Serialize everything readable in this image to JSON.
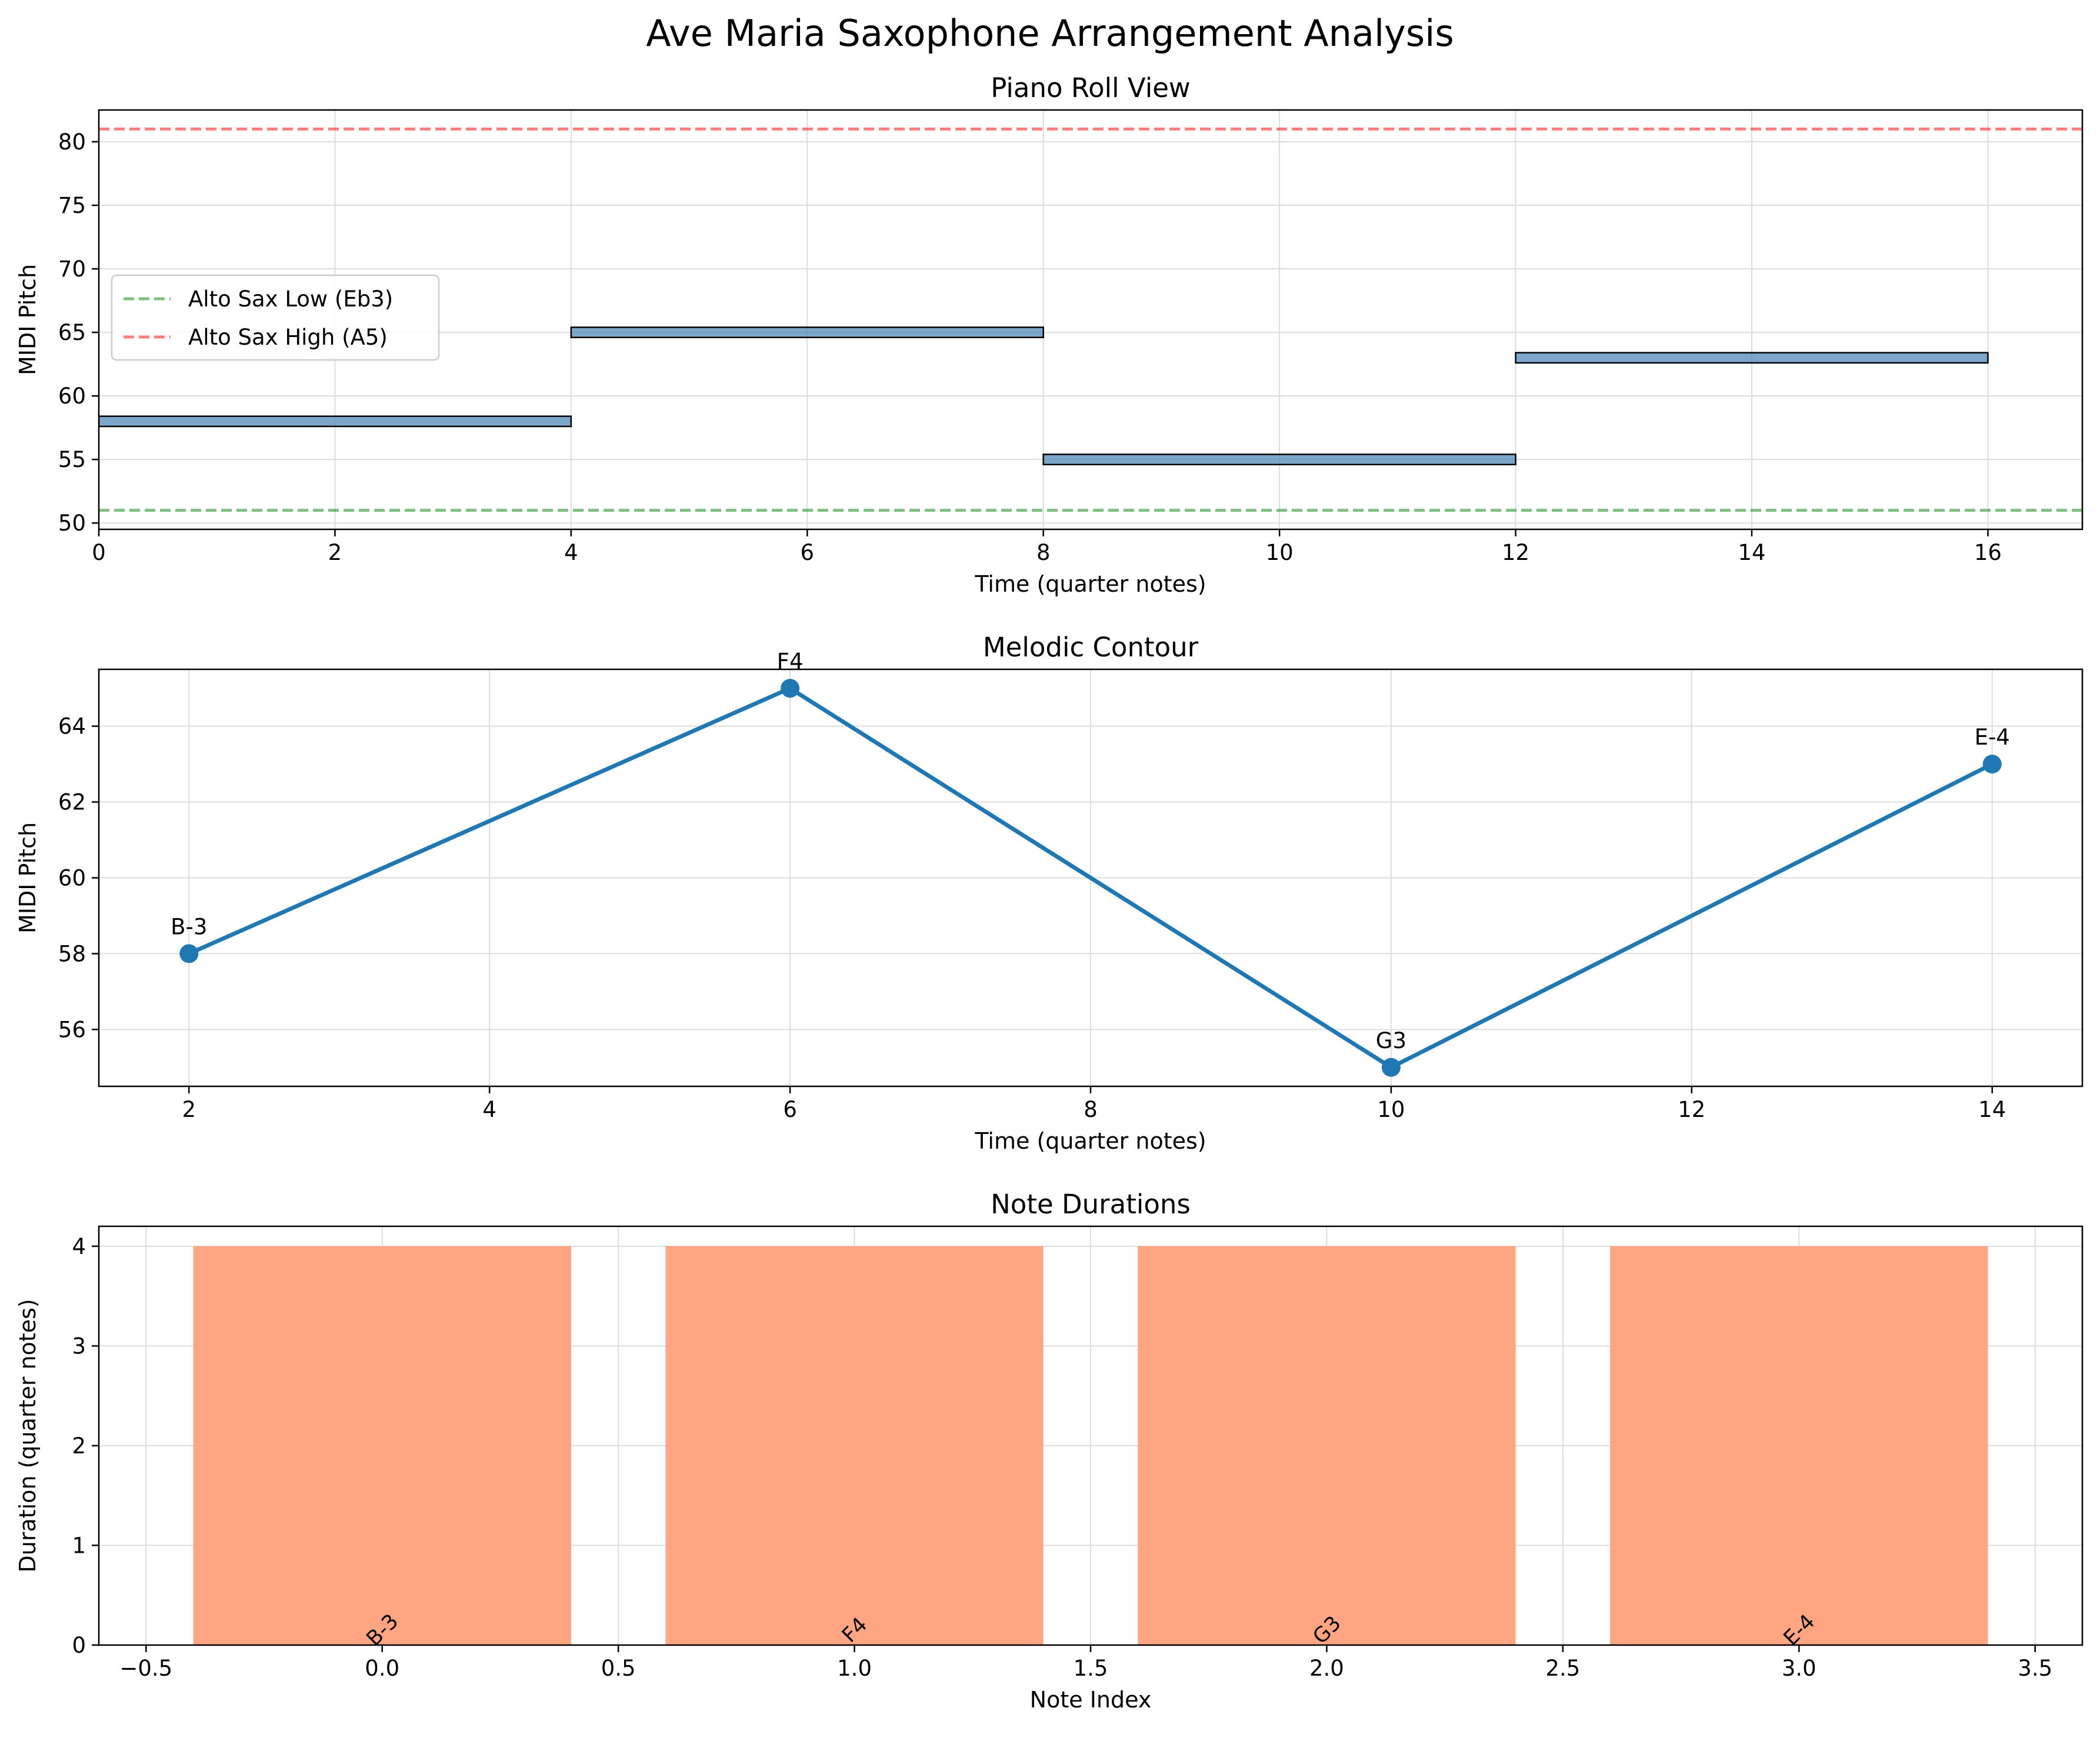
{
  "figure": {
    "title": "Ave Maria Saxophone Arrangement Analysis"
  },
  "colors": {
    "note_fill": "#4682b4",
    "note_edge": "#000000",
    "low_line": "#008000",
    "high_line": "#ff0000",
    "contour_line": "#1f77b4",
    "duration_bar": "#ffa07a",
    "grid": "#dddddd"
  },
  "chart_data": [
    {
      "id": "piano-roll",
      "type": "bar",
      "title": "Piano Roll View",
      "xlabel": "Time (quarter notes)",
      "ylabel": "MIDI Pitch",
      "xlim": [
        0,
        16.8
      ],
      "ylim": [
        49.5,
        82.5
      ],
      "xticks": [
        0,
        2,
        4,
        6,
        8,
        10,
        12,
        14,
        16
      ],
      "yticks": [
        50,
        55,
        60,
        65,
        70,
        75,
        80
      ],
      "grid": true,
      "notes": [
        {
          "start": 0,
          "duration": 4,
          "pitch": 58
        },
        {
          "start": 4,
          "duration": 4,
          "pitch": 65
        },
        {
          "start": 8,
          "duration": 4,
          "pitch": 55
        },
        {
          "start": 12,
          "duration": 4,
          "pitch": 63
        }
      ],
      "reference_lines": [
        {
          "name": "Alto Sax Low (Eb3)",
          "value": 51,
          "style": "dashed"
        },
        {
          "name": "Alto Sax High (A5)",
          "value": 81,
          "style": "dashed"
        }
      ],
      "legend": {
        "placement": "center-left",
        "entries": [
          "Alto Sax Low (Eb3)",
          "Alto Sax High (A5)"
        ]
      }
    },
    {
      "id": "melodic-contour",
      "type": "line",
      "title": "Melodic Contour",
      "xlabel": "Time (quarter notes)",
      "ylabel": "MIDI Pitch",
      "xlim": [
        1.4,
        14.6
      ],
      "ylim": [
        54.5,
        65.5
      ],
      "xticks": [
        2,
        4,
        6,
        8,
        10,
        12,
        14
      ],
      "yticks": [
        56,
        58,
        60,
        62,
        64
      ],
      "grid": true,
      "x": [
        2,
        6,
        10,
        14
      ],
      "y": [
        58,
        65,
        55,
        63
      ],
      "labels": [
        "B-3",
        "F4",
        "G3",
        "E-4"
      ]
    },
    {
      "id": "note-durations",
      "type": "bar",
      "title": "Note Durations",
      "xlabel": "Note Index",
      "ylabel": "Duration (quarter notes)",
      "xlim": [
        -0.6,
        3.6
      ],
      "ylim": [
        0,
        4.2
      ],
      "xticks": [
        -0.5,
        0.0,
        0.5,
        1.0,
        1.5,
        2.0,
        2.5,
        3.0,
        3.5
      ],
      "xtick_labels": [
        "−0.5",
        "0.0",
        "0.5",
        "1.0",
        "1.5",
        "2.0",
        "2.5",
        "3.0",
        "3.5"
      ],
      "yticks": [
        0,
        1,
        2,
        3,
        4
      ],
      "grid": true,
      "categories": [
        0,
        1,
        2,
        3
      ],
      "values": [
        4,
        4,
        4,
        4
      ],
      "labels": [
        "B-3",
        "F4",
        "G3",
        "E-4"
      ]
    }
  ]
}
